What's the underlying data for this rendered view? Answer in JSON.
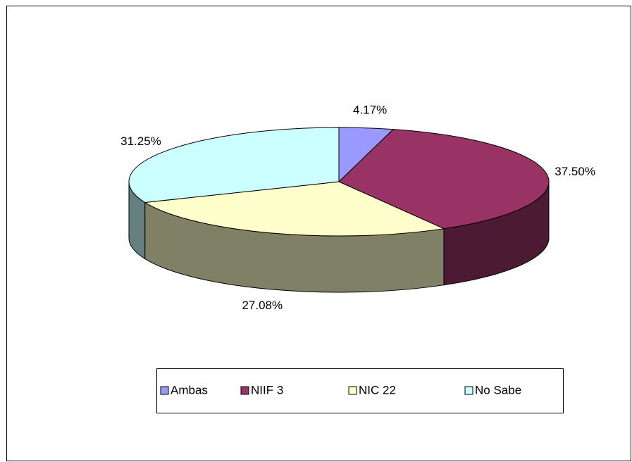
{
  "chart_data": {
    "type": "pie3d",
    "categories": [
      "Ambas",
      "NIIF 3",
      "NIC 22",
      "No Sabe"
    ],
    "values": [
      4.17,
      37.5,
      27.08,
      31.25
    ],
    "value_labels": [
      "4.17%",
      "37.50%",
      "27.08%",
      "31.25%"
    ],
    "colors": [
      "#9999ff",
      "#993366",
      "#ffffcc",
      "#ccffff"
    ],
    "legend": "bottom"
  }
}
